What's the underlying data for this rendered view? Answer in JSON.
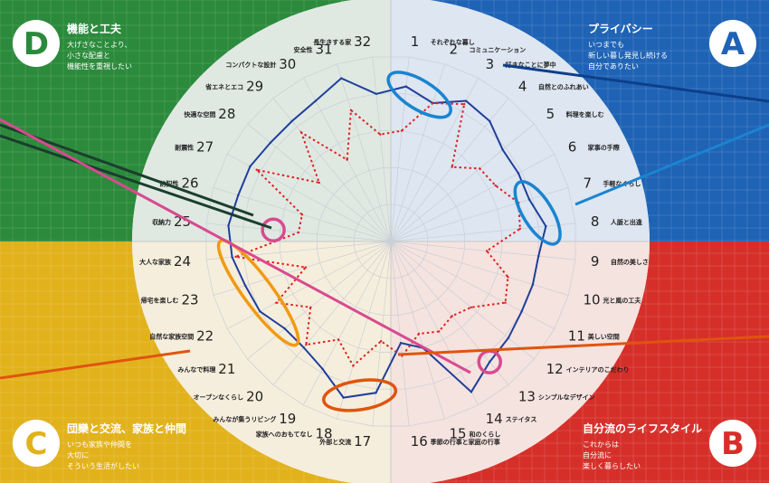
{
  "quadrants": {
    "A": {
      "letter": "A",
      "title": "プライバシー",
      "desc": [
        "いつまでも",
        "新しい暮し発見し続ける",
        "自分でありたい"
      ],
      "color": "#1f63b5",
      "letter_color": "#1f63b5"
    },
    "B": {
      "letter": "B",
      "title": "自分流のライフスタイル",
      "desc": [
        "これからは",
        "自分流に",
        "楽しく暮らしたい"
      ],
      "color": "#d62f2a",
      "letter_color": "#d62f2a"
    },
    "C": {
      "letter": "C",
      "title": "団欒と交流、家族と仲間",
      "desc": [
        "いつも家族や仲間を",
        "大切に",
        "そういう生活がしたい"
      ],
      "color": "#e2b21c",
      "letter_color": "#e2b21c"
    },
    "D": {
      "letter": "D",
      "title": "機能と工夫",
      "desc": [
        "大げさなことより、",
        "小さな配慮と",
        "機能性を重視したい"
      ],
      "color": "#2b8a3b",
      "letter_color": "#2b8a3b"
    }
  },
  "chart_data": {
    "type": "radar",
    "axes": [
      {
        "num": "1",
        "label": "それぞれな暮し"
      },
      {
        "num": "2",
        "label": "コミュニケーション"
      },
      {
        "num": "3",
        "label": "好きなことに夢中"
      },
      {
        "num": "4",
        "label": "自然とのふれあい"
      },
      {
        "num": "5",
        "label": "料理を楽しむ"
      },
      {
        "num": "6",
        "label": "家事の手際"
      },
      {
        "num": "7",
        "label": "手軽なくらし"
      },
      {
        "num": "8",
        "label": "人脈と出逢"
      },
      {
        "num": "9",
        "label": "自然の美しさ"
      },
      {
        "num": "10",
        "label": "光と風の工夫"
      },
      {
        "num": "11",
        "label": "美しい空間"
      },
      {
        "num": "12",
        "label": "インテリアのこだわり"
      },
      {
        "num": "13",
        "label": "シンプルなデザイン"
      },
      {
        "num": "14",
        "label": "ステイタス"
      },
      {
        "num": "15",
        "label": "和のくらし"
      },
      {
        "num": "16",
        "label": "季節の行事と家庭の行事"
      },
      {
        "num": "17",
        "label": "外部と交流"
      },
      {
        "num": "18",
        "label": "家族へのおもてなし"
      },
      {
        "num": "19",
        "label": "みんなが集うリビング"
      },
      {
        "num": "20",
        "label": "オープンなくらし"
      },
      {
        "num": "21",
        "label": "みんなで料理"
      },
      {
        "num": "22",
        "label": "自然な家族空間"
      },
      {
        "num": "23",
        "label": "帰宅を楽しむ"
      },
      {
        "num": "24",
        "label": "大人な家族"
      },
      {
        "num": "25",
        "label": "収納力"
      },
      {
        "num": "26",
        "label": "防犯性"
      },
      {
        "num": "27",
        "label": "耐震性"
      },
      {
        "num": "28",
        "label": "快適な空間"
      },
      {
        "num": "29",
        "label": "省エネとエコ"
      },
      {
        "num": "30",
        "label": "コンパクトな設計"
      },
      {
        "num": "31",
        "label": "安全性"
      },
      {
        "num": "32",
        "label": "長生きする家"
      }
    ],
    "rmax": 1,
    "series": [
      {
        "color": "#1e3f9c",
        "style": "solid",
        "values": [
          0.84,
          0.78,
          0.86,
          0.84,
          0.78,
          0.78,
          0.78,
          0.84,
          0.8,
          0.8,
          0.8,
          0.82,
          0.84,
          0.92,
          0.6,
          0.55,
          0.82,
          0.88,
          0.78,
          0.74,
          0.74,
          0.8,
          0.82,
          0.86,
          0.88,
          0.86,
          0.86,
          0.84,
          0.84,
          0.86,
          0.92,
          0.8
        ]
      },
      {
        "color": "#e02222",
        "style": "dotted",
        "values": [
          0.6,
          0.78,
          0.84,
          0.52,
          0.62,
          0.64,
          0.72,
          0.7,
          0.52,
          0.66,
          0.7,
          0.56,
          0.52,
          0.55,
          0.52,
          0.62,
          0.54,
          0.7,
          0.6,
          0.72,
          0.56,
          0.7,
          0.48,
          0.84,
          0.5,
          0.5,
          0.82,
          0.5,
          0.76,
          0.5,
          0.74,
          0.58
        ]
      }
    ],
    "highlights": [
      {
        "shape": "ellipse",
        "color": "#1a84d1",
        "axes": [
          1,
          2
        ]
      },
      {
        "shape": "ellipse",
        "color": "#1a84d1",
        "axes": [
          7,
          8
        ]
      },
      {
        "shape": "circle",
        "color": "#d84a8f",
        "axes": [
          13
        ]
      },
      {
        "shape": "circle",
        "color": "#d84a8f",
        "axes": [
          25
        ]
      },
      {
        "shape": "ellipse",
        "color": "#f09a12",
        "axes": [
          21,
          24
        ]
      },
      {
        "shape": "ellipse",
        "color": "#e0540e",
        "axes": [
          17,
          18
        ]
      }
    ]
  }
}
